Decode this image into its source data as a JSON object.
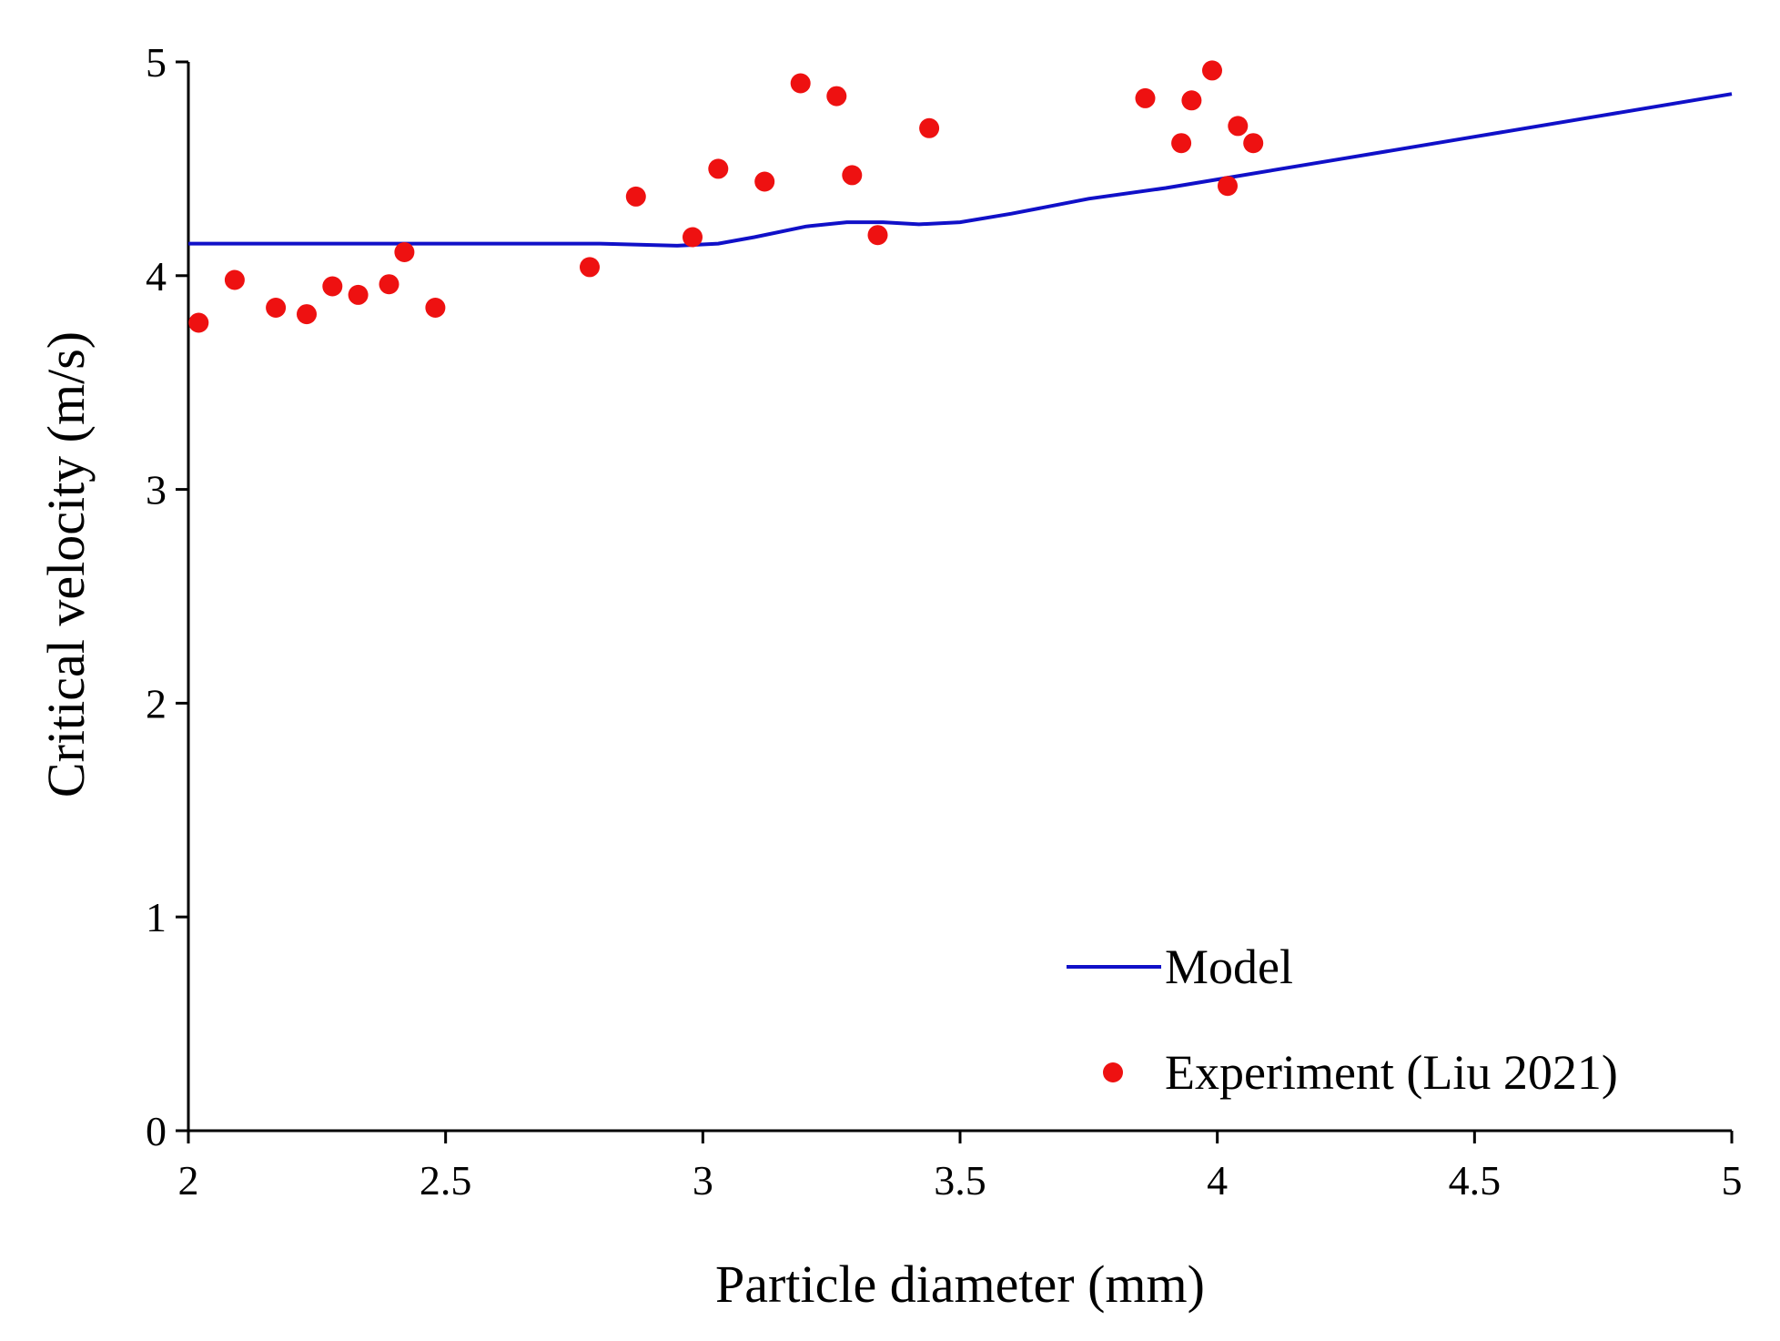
{
  "chart_data": {
    "type": "scatter",
    "title": "",
    "xlabel": "Particle diameter (mm)",
    "ylabel": "Critical velocity (m/s)",
    "xlim": [
      2,
      5
    ],
    "ylim": [
      0,
      5
    ],
    "xticks": [
      2,
      2.5,
      3,
      3.5,
      4,
      4.5,
      5
    ],
    "xtick_labels": [
      "2",
      "2.5",
      "3",
      "3.5",
      "4",
      "4.5",
      "5"
    ],
    "yticks": [
      0,
      1,
      2,
      3,
      4,
      5
    ],
    "ytick_labels": [
      "0",
      "1",
      "2",
      "3",
      "4",
      "5"
    ],
    "grid": false,
    "legend_position": "bottom-right",
    "series": [
      {
        "name": "Model",
        "type": "line",
        "color": "#1010c8",
        "x": [
          2.0,
          2.5,
          2.8,
          2.95,
          3.03,
          3.1,
          3.2,
          3.28,
          3.35,
          3.42,
          3.5,
          3.6,
          3.75,
          3.9,
          4.0,
          4.25,
          4.5,
          4.75,
          5.0
        ],
        "y": [
          4.15,
          4.15,
          4.15,
          4.14,
          4.15,
          4.18,
          4.23,
          4.25,
          4.25,
          4.24,
          4.25,
          4.29,
          4.36,
          4.41,
          4.45,
          4.55,
          4.65,
          4.75,
          4.85
        ]
      },
      {
        "name": "Experiment (Liu 2021)",
        "type": "scatter",
        "color": "#ee1111",
        "x": [
          2.02,
          2.09,
          2.17,
          2.23,
          2.28,
          2.33,
          2.39,
          2.42,
          2.48,
          2.78,
          2.87,
          2.98,
          3.03,
          3.12,
          3.19,
          3.26,
          3.29,
          3.34,
          3.44,
          3.86,
          3.93,
          3.95,
          3.99,
          4.02,
          4.04,
          4.07
        ],
        "y": [
          3.78,
          3.98,
          3.85,
          3.82,
          3.95,
          3.91,
          3.96,
          4.11,
          3.85,
          4.04,
          4.37,
          4.18,
          4.5,
          4.44,
          4.9,
          4.84,
          4.47,
          4.19,
          4.69,
          4.83,
          4.62,
          4.82,
          4.96,
          4.42,
          4.7,
          4.62
        ]
      }
    ]
  }
}
